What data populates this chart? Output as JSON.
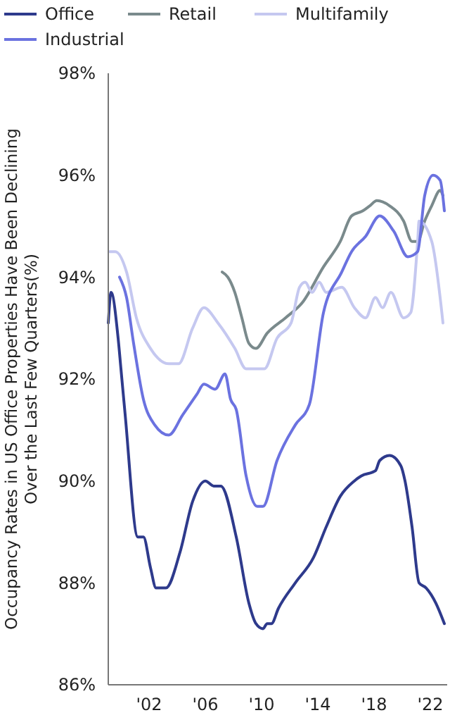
{
  "chart_data": {
    "type": "line",
    "ylabel": "Occupancy Rates in US Office Properties Have Been Declining Over the Last Few Quarters(%)",
    "xlim": [
      1999.1,
      2023.2
    ],
    "ylim": [
      86,
      98
    ],
    "xticks": [
      {
        "value": 2002,
        "label": "'02"
      },
      {
        "value": 2006,
        "label": "'06"
      },
      {
        "value": 2010,
        "label": "'10"
      },
      {
        "value": 2014,
        "label": "'14"
      },
      {
        "value": 2018,
        "label": "'18"
      },
      {
        "value": 2022,
        "label": "'22"
      }
    ],
    "yticks": [
      {
        "value": 86,
        "label": "86%"
      },
      {
        "value": 88,
        "label": "88%"
      },
      {
        "value": 90,
        "label": "90%"
      },
      {
        "value": 92,
        "label": "92%"
      },
      {
        "value": 94,
        "label": "94%"
      },
      {
        "value": 96,
        "label": "96%"
      },
      {
        "value": 98,
        "label": "98%"
      }
    ],
    "grid": false,
    "legend": "top",
    "line_style": "solid",
    "marker": "none",
    "series": [
      {
        "name": "Office",
        "color": "#2e3a8c",
        "x": [
          1999.1,
          1999.3,
          1999.8,
          2000.0,
          2000.3,
          2001.2,
          2001.6,
          2002.1,
          2002.5,
          2003.2,
          2004.2,
          2005.1,
          2006.0,
          2006.6,
          2007.1,
          2008.2,
          2009.1,
          2009.6,
          2010.1,
          2010.4,
          2010.7,
          2011.2,
          2012.4,
          2013.7,
          2014.6,
          2015.6,
          2016.6,
          2017.1,
          2018.1,
          2018.4,
          2019.1,
          2019.9,
          2020.2,
          2020.7,
          2021.2,
          2021.7,
          2022.4,
          2023.0
        ],
        "values": [
          93.1,
          93.7,
          92.8,
          92.2,
          91.3,
          88.9,
          88.9,
          88.3,
          87.9,
          87.9,
          88.6,
          89.6,
          90.0,
          89.9,
          89.9,
          88.9,
          87.6,
          87.2,
          87.1,
          87.2,
          87.2,
          87.5,
          88.0,
          88.5,
          89.1,
          89.7,
          90.0,
          90.1,
          90.2,
          90.4,
          90.5,
          90.3,
          90.0,
          89.1,
          88.0,
          87.9,
          87.6,
          87.2
        ]
      },
      {
        "name": "Retail",
        "color": "#7a8a8c",
        "x": [
          2007.2,
          2007.6,
          2008.1,
          2008.6,
          2009.1,
          2009.6,
          2010.4,
          2011.7,
          2012.9,
          2014.4,
          2015.6,
          2016.4,
          2017.2,
          2017.7,
          2018.2,
          2019.1,
          2020.1,
          2020.7,
          2021.1,
          2021.6,
          2022.1,
          2022.7,
          2022.9
        ],
        "values": [
          94.1,
          94.0,
          93.7,
          93.2,
          92.7,
          92.6,
          92.9,
          93.2,
          93.5,
          94.2,
          94.7,
          95.2,
          95.3,
          95.4,
          95.5,
          95.4,
          95.1,
          94.7,
          94.7,
          95.1,
          95.4,
          95.7,
          95.6
        ]
      },
      {
        "name": "Multifamily",
        "color": "#c5c8f0",
        "x": [
          1999.2,
          1999.6,
          2000.4,
          2001.1,
          2002.1,
          2003.4,
          2004.1,
          2005.1,
          2005.9,
          2006.9,
          2008.1,
          2008.9,
          2009.4,
          2010.2,
          2011.1,
          2012.1,
          2012.7,
          2013.1,
          2013.6,
          2014.1,
          2014.6,
          2015.7,
          2016.6,
          2017.4,
          2018.1,
          2018.6,
          2019.2,
          2020.1,
          2020.6,
          2021.1,
          2021.2,
          2022.1,
          2022.9
        ],
        "values": [
          94.5,
          94.5,
          94.1,
          93.2,
          92.6,
          92.3,
          92.3,
          93.0,
          93.4,
          93.1,
          92.6,
          92.2,
          92.2,
          92.2,
          92.8,
          93.1,
          93.8,
          93.9,
          93.7,
          93.9,
          93.7,
          93.8,
          93.4,
          93.2,
          93.6,
          93.4,
          93.7,
          93.2,
          93.3,
          94.7,
          95.1,
          94.7,
          93.1
        ]
      },
      {
        "name": "Industrial",
        "color": "#6b72e0",
        "x": [
          1999.9,
          2000.4,
          2000.9,
          2001.6,
          2002.4,
          2003.4,
          2004.4,
          2005.4,
          2005.9,
          2006.7,
          2007.4,
          2007.8,
          2008.2,
          2008.9,
          2009.7,
          2010.1,
          2011.1,
          2012.4,
          2013.4,
          2014.4,
          2015.7,
          2016.4,
          2017.4,
          2018.4,
          2019.4,
          2020.4,
          2021.1,
          2021.6,
          2022.2,
          2022.7,
          2023.0
        ],
        "values": [
          94.0,
          93.6,
          92.7,
          91.6,
          91.1,
          90.9,
          91.3,
          91.7,
          91.9,
          91.8,
          92.1,
          91.6,
          91.4,
          90.1,
          89.5,
          89.5,
          90.4,
          91.1,
          91.5,
          93.3,
          94.1,
          94.5,
          94.8,
          95.2,
          94.9,
          94.4,
          94.5,
          95.6,
          96.0,
          95.9,
          95.3
        ]
      }
    ]
  }
}
